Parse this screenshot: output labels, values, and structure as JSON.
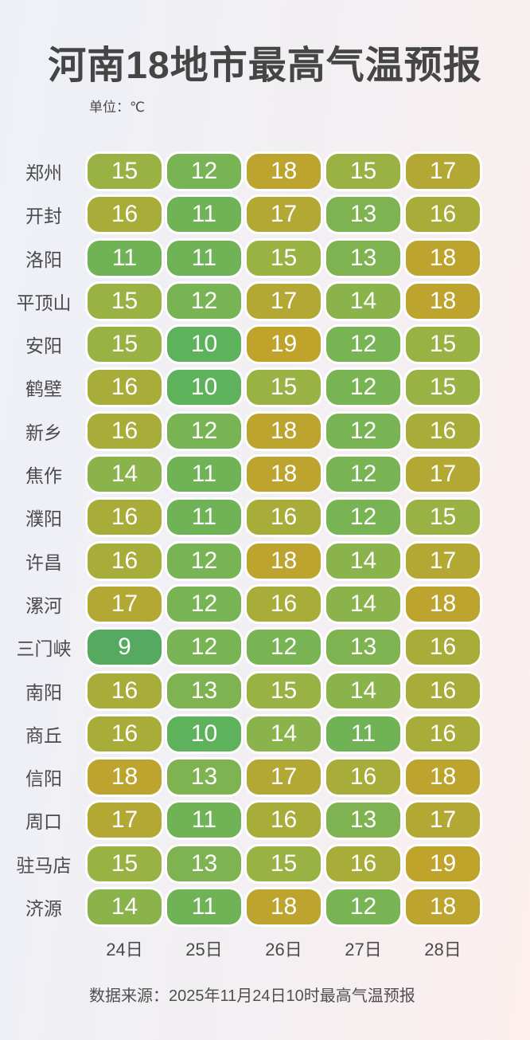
{
  "title": "河南18地市最高气温预报",
  "unit_label": "单位：℃",
  "footer": "数据来源：2025年11月24日10时最高气温预报",
  "background": {
    "gradient_left": "#edf1f7",
    "gradient_right": "#fcefee"
  },
  "text_colors": {
    "title": "#454545",
    "labels": "#4a4a4e",
    "cell_value": "#ffffff"
  },
  "chart_data": {
    "type": "heatmap",
    "title": "河南18地市最高气温预报",
    "unit": "℃",
    "columns": [
      "24日",
      "25日",
      "26日",
      "27日",
      "28日"
    ],
    "rows": [
      {
        "city": "郑州",
        "values": [
          15,
          12,
          18,
          15,
          17
        ]
      },
      {
        "city": "开封",
        "values": [
          16,
          11,
          17,
          13,
          16
        ]
      },
      {
        "city": "洛阳",
        "values": [
          11,
          11,
          15,
          13,
          18
        ]
      },
      {
        "city": "平顶山",
        "values": [
          15,
          12,
          17,
          14,
          18
        ]
      },
      {
        "city": "安阳",
        "values": [
          15,
          10,
          19,
          12,
          15
        ]
      },
      {
        "city": "鹤壁",
        "values": [
          16,
          10,
          15,
          12,
          15
        ]
      },
      {
        "city": "新乡",
        "values": [
          16,
          12,
          18,
          12,
          16
        ]
      },
      {
        "city": "焦作",
        "values": [
          14,
          11,
          18,
          12,
          17
        ]
      },
      {
        "city": "濮阳",
        "values": [
          16,
          11,
          16,
          12,
          15
        ]
      },
      {
        "city": "许昌",
        "values": [
          16,
          12,
          18,
          14,
          17
        ]
      },
      {
        "city": "漯河",
        "values": [
          17,
          12,
          16,
          14,
          18
        ]
      },
      {
        "city": "三门峡",
        "values": [
          9,
          12,
          12,
          13,
          16
        ]
      },
      {
        "city": "南阳",
        "values": [
          16,
          13,
          15,
          14,
          16
        ]
      },
      {
        "city": "商丘",
        "values": [
          16,
          10,
          14,
          11,
          16
        ]
      },
      {
        "city": "信阳",
        "values": [
          18,
          13,
          17,
          16,
          18
        ]
      },
      {
        "city": "周口",
        "values": [
          17,
          11,
          16,
          13,
          17
        ]
      },
      {
        "city": "驻马店",
        "values": [
          15,
          13,
          15,
          16,
          19
        ]
      },
      {
        "city": "济源",
        "values": [
          14,
          11,
          18,
          12,
          18
        ]
      }
    ],
    "value_range": [
      9,
      19
    ],
    "color_scale": {
      "9": "#55aa60",
      "10": "#5fb25c",
      "11": "#70b356",
      "12": "#78b453",
      "13": "#7fb351",
      "14": "#8bb34c",
      "15": "#9ab144",
      "16": "#a8ac39",
      "17": "#b3a833",
      "18": "#bda42e",
      "19": "#bfa32b"
    },
    "legend_position": "none",
    "grid": false
  }
}
